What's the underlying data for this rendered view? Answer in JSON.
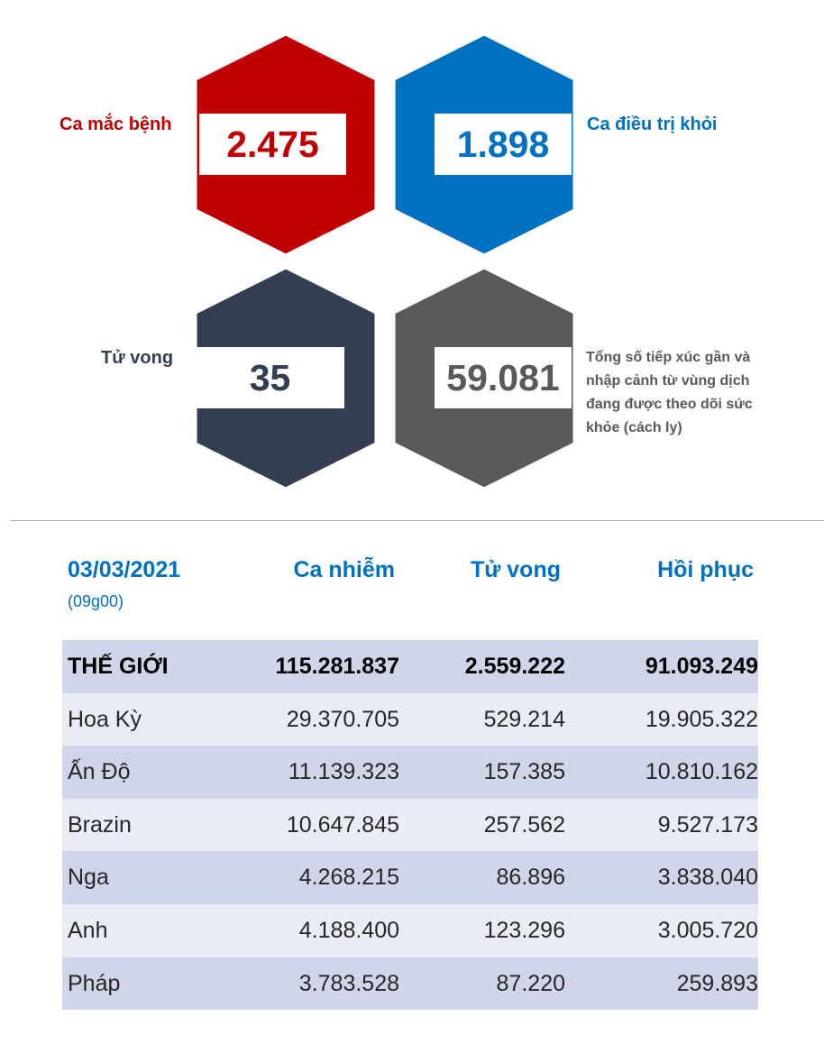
{
  "stats": {
    "cases": {
      "label": "Ca mắc bệnh",
      "value": "2.475",
      "color": "#c00000"
    },
    "recovered": {
      "label": "Ca điều trị khỏi",
      "value": "1.898",
      "color": "#0070c0"
    },
    "deaths": {
      "label": "Tử vong",
      "value": "35",
      "color": "#333f50"
    },
    "monitored": {
      "value": "59.081",
      "color": "#595959",
      "note": "Tổng số tiếp xúc gần và nhập cảnh từ vùng dịch đang được theo dõi sức khỏe (cách ly)"
    }
  },
  "world_table": {
    "date": "03/03/2021",
    "time": "(09g00)",
    "columns": [
      "Ca nhiễm",
      "Tử vong",
      "Hồi phục"
    ],
    "rows": [
      {
        "name": "THẾ GIỚI",
        "cases": "115.281.837",
        "deaths": "2.559.222",
        "recovered": "91.093.249"
      },
      {
        "name": "Hoa Kỳ",
        "cases": "29.370.705",
        "deaths": "529.214",
        "recovered": "19.905.322"
      },
      {
        "name": "Ấn Độ",
        "cases": "11.139.323",
        "deaths": "157.385",
        "recovered": "10.810.162"
      },
      {
        "name": "Brazin",
        "cases": "10.647.845",
        "deaths": "257.562",
        "recovered": "9.527.173"
      },
      {
        "name": "Nga",
        "cases": "4.268.215",
        "deaths": "86.896",
        "recovered": "3.838.040"
      },
      {
        "name": "Anh",
        "cases": "4.188.400",
        "deaths": "123.296",
        "recovered": "3.005.720"
      },
      {
        "name": "Pháp",
        "cases": "3.783.528",
        "deaths": "87.220",
        "recovered": "259.893"
      }
    ]
  }
}
